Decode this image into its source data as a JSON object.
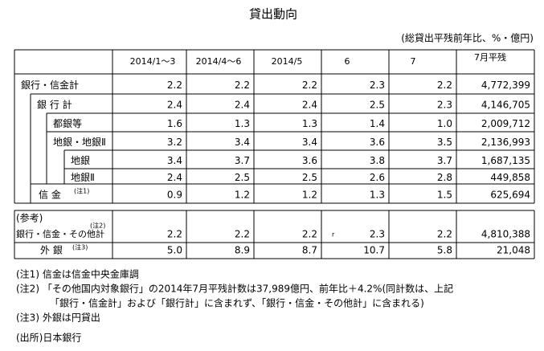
{
  "title": "貸出動向",
  "unit_note": "(総貸出平残前年比、%・億円)",
  "table": {
    "columns": [
      "2014/1～3",
      "2014/4～6",
      "2014/5",
      "6",
      "7",
      "7月平残"
    ],
    "rows": [
      {
        "label": "銀行・信金計",
        "values": [
          "2.2",
          "2.2",
          "2.2",
          "2.3",
          "2.2",
          "4,772,399"
        ]
      },
      {
        "label": "銀 行 計",
        "values": [
          "2.4",
          "2.4",
          "2.4",
          "2.5",
          "2.3",
          "4,146,705"
        ]
      },
      {
        "label": "都銀等",
        "values": [
          "1.6",
          "1.3",
          "1.3",
          "1.4",
          "1.0",
          "2,009,712"
        ]
      },
      {
        "label": "地銀・地銀Ⅱ",
        "values": [
          "3.2",
          "3.4",
          "3.4",
          "3.6",
          "3.5",
          "2,136,993"
        ]
      },
      {
        "label": "地銀",
        "values": [
          "3.4",
          "3.7",
          "3.6",
          "3.8",
          "3.7",
          "1,687,135"
        ]
      },
      {
        "label": "地銀Ⅱ",
        "values": [
          "2.4",
          "2.5",
          "2.5",
          "2.6",
          "2.8",
          "449,858"
        ]
      },
      {
        "label": "信 金",
        "note": "(注1)",
        "values": [
          "0.9",
          "1.2",
          "1.2",
          "1.3",
          "1.5",
          "625,694"
        ]
      }
    ]
  },
  "reference": {
    "label": "(参考)",
    "rows": [
      {
        "label": "銀行・信金・その他計",
        "note": "(注2)",
        "revised_mark": "r",
        "values": [
          "2.2",
          "2.2",
          "2.2",
          "2.3",
          "2.2",
          "4,810,388"
        ]
      },
      {
        "label": "外 銀",
        "note": "(注3)",
        "values": [
          "5.0",
          "8.9",
          "8.7",
          "10.7",
          "5.8",
          "21,048"
        ]
      }
    ]
  },
  "notes": [
    "(注1) 信金は信金中央金庫調",
    "(注2) 「その他国内対象銀行」の2014年7月平残計数は37,989億円、前年比＋4.2%(同計数は、上記",
    "「銀行・信金計」および「銀行計」に含まれず、「銀行・信金・その他計」に含まれる)",
    "(注3) 外銀は円貸出"
  ],
  "source": "(出所)日本銀行"
}
